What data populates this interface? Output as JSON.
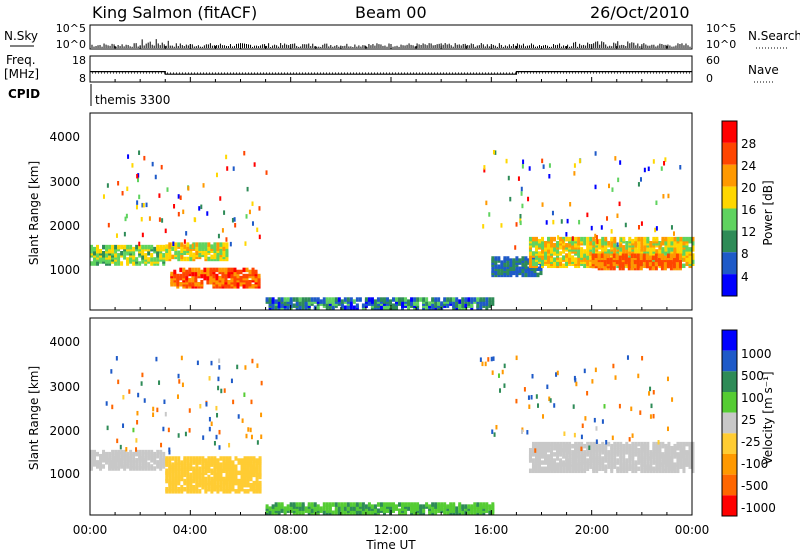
{
  "header": {
    "station": "King Salmon (fitACF)",
    "beam": "Beam 00",
    "date": "26/Oct/2010"
  },
  "noise_panel": {
    "left_label": "N.Sky",
    "right_label": "N.Search",
    "left_ticks": [
      "10^5",
      "10^0"
    ],
    "right_ticks": [
      "10^5",
      "10^0"
    ]
  },
  "freq_panel": {
    "left_label_1": "Freq.",
    "left_label_2": "[MHz]",
    "right_label": "Nave",
    "left_ticks": [
      "18",
      "8"
    ],
    "right_ticks": [
      "60",
      "0"
    ]
  },
  "cpid_panel": {
    "label": "CPID",
    "program": "themis 3300"
  },
  "x_axis": {
    "label": "Time UT",
    "ticks": [
      "00:00",
      "04:00",
      "08:00",
      "12:00",
      "16:00",
      "20:00",
      "00:00"
    ]
  },
  "power_panel": {
    "ylabel": "Slant Range [km]",
    "yticks": [
      "1000",
      "2000",
      "3000",
      "4000"
    ],
    "colorbar_label": "Power [dB]",
    "colorbar_ticks": [
      "4",
      "8",
      "12",
      "16",
      "20",
      "24",
      "28"
    ]
  },
  "velocity_panel": {
    "ylabel": "Slant Range [km]",
    "yticks": [
      "1000",
      "2000",
      "3000",
      "4000"
    ],
    "colorbar_label": "Velocity [m s⁻¹]",
    "colorbar_ticks": [
      "1000",
      "500",
      "100",
      "25",
      "-25",
      "-100",
      "-500",
      "-1000"
    ]
  },
  "chart_data": [
    {
      "type": "line",
      "name": "noise",
      "x_unit": "hours UT",
      "xlim": [
        0,
        24
      ],
      "ylim": [
        0,
        5
      ],
      "series": [
        {
          "values": [
            [
              0,
              0.6
            ],
            [
              2,
              0.9
            ],
            [
              3,
              1.2
            ],
            [
              4,
              0.5
            ],
            [
              8,
              0.4
            ],
            [
              12,
              0.3
            ],
            [
              16,
              0.5
            ],
            [
              20,
              0.8
            ],
            [
              24,
              0.7
            ]
          ]
        }
      ]
    },
    {
      "type": "line",
      "name": "frequency",
      "xlim": [
        0,
        24
      ],
      "ylim": [
        8,
        18
      ],
      "series": [
        {
          "values": [
            [
              0,
              12
            ],
            [
              3,
              12
            ],
            [
              3,
              11
            ],
            [
              17,
              11
            ],
            [
              17,
              12
            ],
            [
              24,
              12
            ]
          ]
        }
      ]
    },
    {
      "type": "heatmap",
      "name": "power",
      "x_unit": "hours UT",
      "y_unit": "km",
      "xlim": [
        0,
        24
      ],
      "ylim": [
        180,
        4500
      ],
      "zlim": [
        0,
        30
      ],
      "colormap": [
        "#0000ff",
        "#1e5ac8",
        "#2e8b57",
        "#5fd35f",
        "#ffd700",
        "#ff9900",
        "#ff4500",
        "#ff0000"
      ],
      "regions": [
        {
          "t": [
            0.0,
            2.9
          ],
          "r": [
            1150,
            1550
          ],
          "z": [
            10,
            18
          ]
        },
        {
          "t": [
            3.0,
            5.5
          ],
          "r": [
            1250,
            1600
          ],
          "z": [
            12,
            20
          ]
        },
        {
          "t": [
            3.2,
            6.8
          ],
          "r": [
            650,
            1050
          ],
          "z": [
            20,
            28
          ]
        },
        {
          "t": [
            16.0,
            18.0
          ],
          "r": [
            900,
            1300
          ],
          "z": [
            4,
            10
          ]
        },
        {
          "t": [
            17.5,
            24.0
          ],
          "r": [
            1100,
            1700
          ],
          "z": [
            12,
            22
          ]
        },
        {
          "t": [
            20.0,
            23.5
          ],
          "r": [
            1050,
            1350
          ],
          "z": [
            20,
            26
          ]
        },
        {
          "t": [
            7.0,
            16.0
          ],
          "r": [
            180,
            400
          ],
          "z": [
            2,
            14
          ]
        }
      ]
    },
    {
      "type": "heatmap",
      "name": "velocity",
      "x_unit": "hours UT",
      "y_unit": "km",
      "xlim": [
        0,
        24
      ],
      "ylim": [
        180,
        4500
      ],
      "zlim": [
        -1000,
        1000
      ],
      "colormap": [
        "#ff0000",
        "#ff6600",
        "#ff9900",
        "#ffcc33",
        "#c8c8c8",
        "#55cc33",
        "#2e8b57",
        "#1e5ac8",
        "#0000ff"
      ],
      "regions": [
        {
          "t": [
            0.0,
            2.9
          ],
          "r": [
            1150,
            1550
          ],
          "z": [
            0,
            0
          ]
        },
        {
          "t": [
            3.0,
            6.8
          ],
          "r": [
            650,
            1400
          ],
          "z": [
            -80,
            -40
          ]
        },
        {
          "t": [
            17.5,
            24.0
          ],
          "r": [
            1100,
            1700
          ],
          "z": [
            0,
            0
          ]
        },
        {
          "t": [
            7.0,
            16.0
          ],
          "r": [
            180,
            400
          ],
          "z": [
            60,
            120
          ]
        }
      ]
    }
  ]
}
